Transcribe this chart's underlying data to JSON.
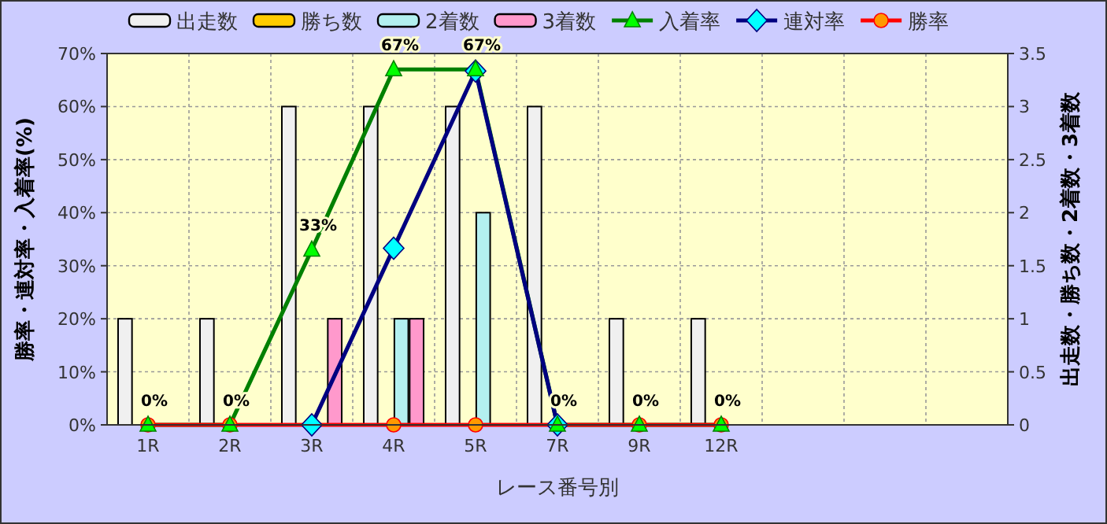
{
  "chart_data": {
    "type": "bar",
    "xlabel": "レース番号別",
    "ylabel": "勝率・連対率・入着率(%)",
    "y2label": "出走数・勝ち数・2着数・3着数",
    "categories": [
      "1R",
      "2R",
      "3R",
      "4R",
      "5R",
      "7R",
      "9R",
      "12R",
      null,
      null,
      null
    ],
    "ylim": [
      0,
      70
    ],
    "yticks": [
      {
        "value": 0,
        "label": "0%"
      },
      {
        "value": 10,
        "label": "10%"
      },
      {
        "value": 20,
        "label": "20%"
      },
      {
        "value": 30,
        "label": "30%"
      },
      {
        "value": 40,
        "label": "40%"
      },
      {
        "value": 50,
        "label": "50%"
      },
      {
        "value": 60,
        "label": "60%"
      },
      {
        "value": 70,
        "label": "70%"
      }
    ],
    "y2lim": [
      0,
      3.5
    ],
    "y2ticks": [
      0,
      0.5,
      1,
      1.5,
      2,
      2.5,
      3,
      3.5
    ],
    "grid": true,
    "legend": "top",
    "series": [
      {
        "name": "出走数",
        "axis": "y2",
        "color": "#f0f0f0",
        "values": [
          1,
          1,
          3,
          3,
          3,
          3,
          1,
          1,
          null,
          null,
          null
        ]
      },
      {
        "name": "勝ち数",
        "axis": "y2",
        "color": "#ffcc00",
        "values": [
          0,
          0,
          0,
          0,
          0,
          0,
          0,
          0,
          null,
          null,
          null
        ]
      },
      {
        "name": "2着数",
        "axis": "y2",
        "color": "#b3f0f0",
        "values": [
          0,
          0,
          0,
          1,
          2,
          0,
          0,
          0,
          null,
          null,
          null
        ]
      },
      {
        "name": "3着数",
        "axis": "y2",
        "color": "#ff99cc",
        "values": [
          0,
          0,
          1,
          1,
          0,
          0,
          0,
          0,
          null,
          null,
          null
        ]
      },
      {
        "name": "入着率",
        "type": "line",
        "color": "#008000",
        "marker": "triangle",
        "values": [
          0,
          0,
          33,
          67,
          67,
          0,
          0,
          0,
          null,
          null,
          null
        ],
        "value_labels": [
          "0%",
          "0%",
          "33%",
          "67%",
          "67%",
          "0%",
          "0%",
          "0%",
          null,
          null,
          null
        ]
      },
      {
        "name": "連対率",
        "type": "line",
        "color": "#000080",
        "marker": "diamond",
        "values": [
          null,
          null,
          0,
          33.3,
          66.7,
          0,
          null,
          null,
          null,
          null,
          null
        ]
      },
      {
        "name": "勝率",
        "type": "line",
        "color": "#ff0000",
        "marker": "circle",
        "values": [
          0,
          0,
          0,
          0,
          0,
          0,
          0,
          0,
          null,
          null,
          null
        ]
      }
    ]
  }
}
